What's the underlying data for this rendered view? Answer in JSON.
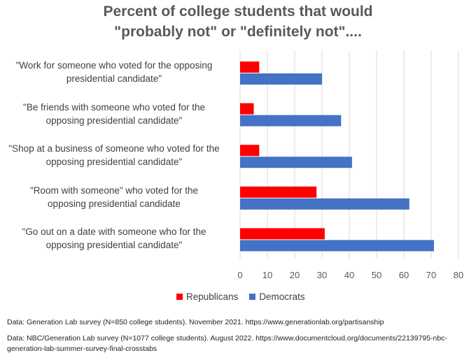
{
  "chart_data": {
    "type": "bar",
    "orientation": "horizontal",
    "title": "Percent of college students that would",
    "subtitle": "\"probably not\" or \"definitely not\"....",
    "categories": [
      "\"Work for someone who voted for the opposing presidential candidate\"",
      "\"Be friends with someone who voted for the opposing presidential candidate\"",
      "\"Shop at a business of someone who voted for the opposing presidential candidate\"",
      "\"Room with someone\" who voted for the opposing presidential candidate",
      "\"Go out on a date with someone who for the opposing presidential candidate\""
    ],
    "category_lines": [
      [
        "\"Work for someone who voted for the opposing",
        "presidential candidate\""
      ],
      [
        "\"Be friends with someone who voted for the",
        "opposing presidential candidate\""
      ],
      [
        "\"Shop at a business of someone who voted for the",
        "opposing presidential candidate\""
      ],
      [
        "\"Room with someone\" who voted for the",
        "opposing presidential candidate"
      ],
      [
        "\"Go out on a date with someone who for the",
        "opposing presidential candidate\""
      ]
    ],
    "series": [
      {
        "name": "Republicans",
        "color": "#ff0000",
        "values": [
          7,
          5,
          7,
          28,
          31
        ]
      },
      {
        "name": "Democrats",
        "color": "#4472c4",
        "values": [
          30,
          37,
          41,
          62,
          71
        ]
      }
    ],
    "xlim": [
      0,
      80
    ],
    "xticks": [
      "0",
      "10",
      "20",
      "30",
      "40",
      "50",
      "60",
      "70",
      "80"
    ],
    "grid": true,
    "legend_position": "bottom",
    "xlabel": "",
    "ylabel": ""
  },
  "notes": [
    "Data: Generation Lab survey (N=850 college students). November 2021. https://www.generationlab.org/partisanship",
    "Data: NBC/Generation Lab survey (N=1077 college students). August 2022. https://www.documentcloud.org/documents/22139795-nbc-generation-lab-summer-survey-final-crosstabs"
  ]
}
